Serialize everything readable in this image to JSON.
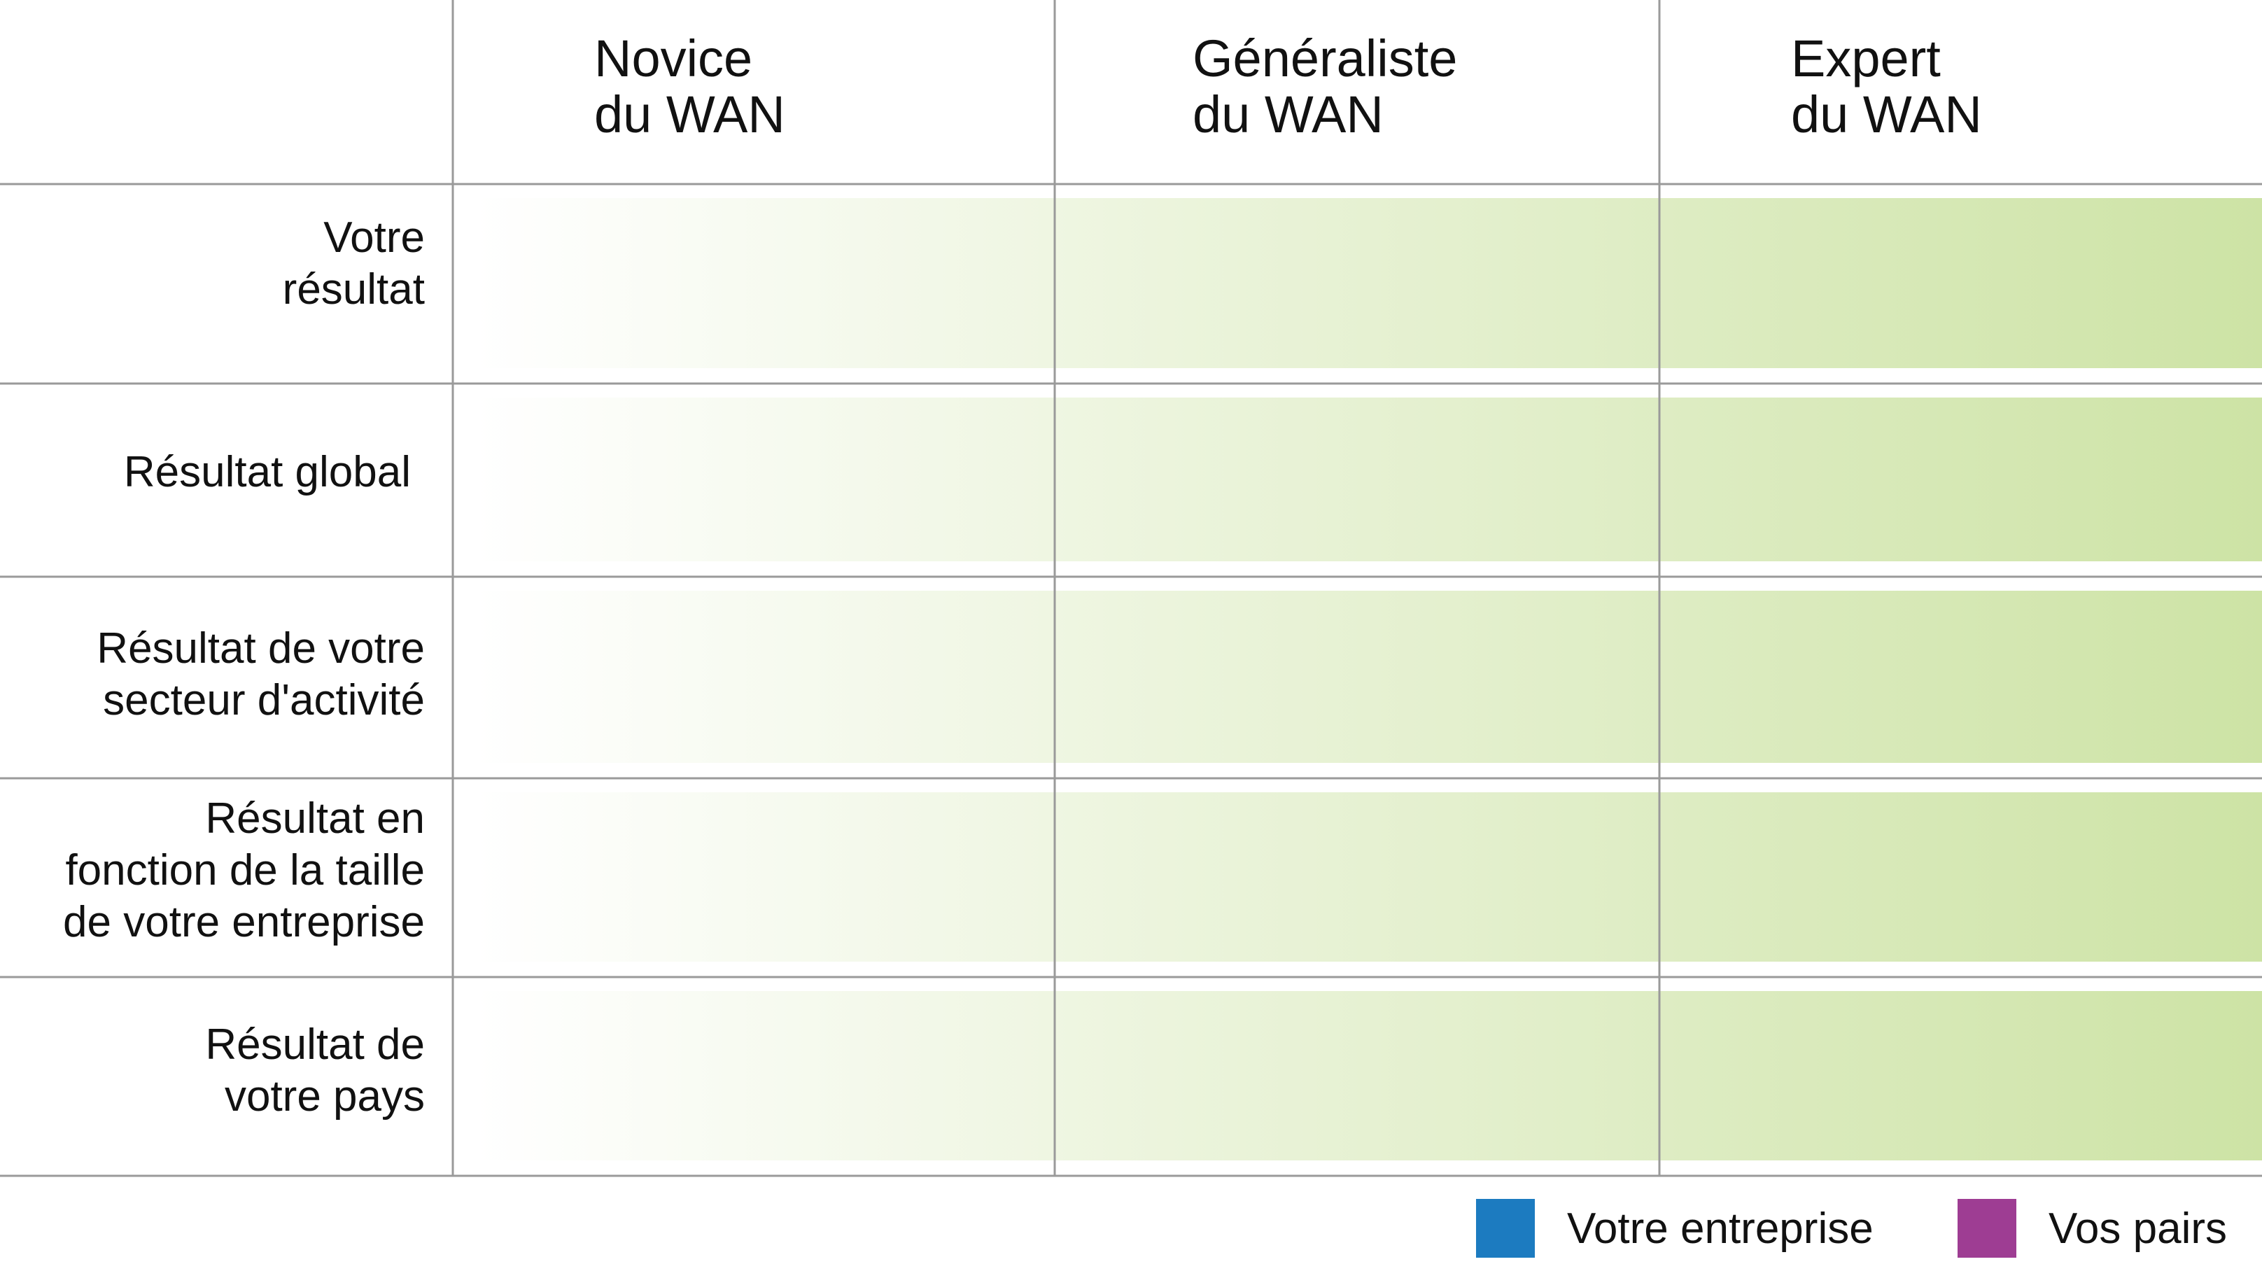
{
  "chart_data": {
    "type": "table",
    "columns": [
      "Novice\ndu WAN",
      "Généraliste\ndu WAN",
      "Expert\ndu WAN"
    ],
    "rows": [
      "Votre\nrésultat",
      "Résultat global",
      "Résultat de votre\nsecteur d'activité",
      "Résultat en\nfonction de la taille\nde votre entreprise",
      "Résultat de\nvotre pays"
    ],
    "gradient": {
      "start": "#ffffff",
      "end": "#cde3a5"
    },
    "grid_color": "#9a9a9a",
    "legend": [
      {
        "label": "Votre entreprise",
        "color": "#1c7bc0"
      },
      {
        "label": "Vos pairs",
        "color": "#9e3d93"
      }
    ]
  }
}
